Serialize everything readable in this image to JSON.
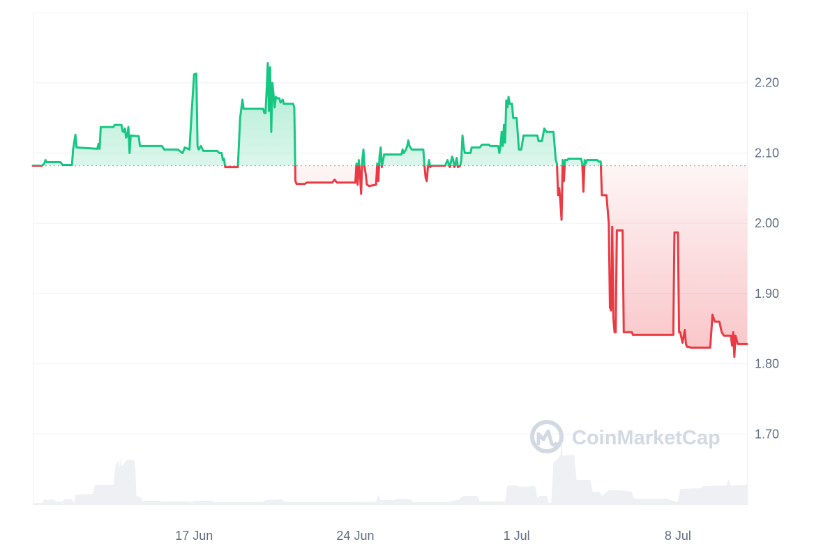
{
  "chart_data": {
    "type": "line",
    "title": "",
    "xlabel": "",
    "ylabel": "",
    "x_ticks": [
      "17 Jun",
      "24 Jun",
      "1 Jul",
      "8 Jul"
    ],
    "y_ticks": [
      "2.20",
      "2.10",
      "2.00",
      "1.90",
      "1.80",
      "1.70"
    ],
    "ylim": [
      1.6,
      2.3
    ],
    "x_range_days": [
      0,
      31
    ],
    "baseline": 2.082,
    "grid": true,
    "legend": "none",
    "colors": {
      "up": "#16c784",
      "down": "#ea3943",
      "grid": "#eef0f4",
      "baseline": "#a4acbb",
      "volume": "#eef0f3"
    },
    "series": [
      {
        "points": [
          [
            0.0,
            2.082
          ],
          [
            0.4,
            2.082
          ],
          [
            0.5,
            2.085
          ],
          [
            0.55,
            2.09
          ],
          [
            0.6,
            2.087
          ],
          [
            1.2,
            2.087
          ],
          [
            1.3,
            2.083
          ],
          [
            1.7,
            2.083
          ],
          [
            1.75,
            2.105
          ],
          [
            1.85,
            2.126
          ],
          [
            1.9,
            2.108
          ],
          [
            2.8,
            2.106
          ],
          [
            2.85,
            2.113
          ],
          [
            2.9,
            2.106
          ],
          [
            2.95,
            2.137
          ],
          [
            3.5,
            2.137
          ],
          [
            3.55,
            2.14
          ],
          [
            3.85,
            2.14
          ],
          [
            3.9,
            2.131
          ],
          [
            3.95,
            2.13
          ],
          [
            4.0,
            2.135
          ],
          [
            4.05,
            2.122
          ],
          [
            4.1,
            2.125
          ],
          [
            4.15,
            2.137
          ],
          [
            4.2,
            2.1
          ],
          [
            4.25,
            2.125
          ],
          [
            4.6,
            2.124
          ],
          [
            4.65,
            2.11
          ],
          [
            5.6,
            2.11
          ],
          [
            5.65,
            2.108
          ],
          [
            5.7,
            2.105
          ],
          [
            6.3,
            2.105
          ],
          [
            6.5,
            2.1
          ],
          [
            6.6,
            2.108
          ],
          [
            6.8,
            2.105
          ],
          [
            6.9,
            2.16
          ],
          [
            7.0,
            2.212
          ],
          [
            7.1,
            2.213
          ],
          [
            7.15,
            2.11
          ],
          [
            7.2,
            2.105
          ],
          [
            7.3,
            2.11
          ],
          [
            7.4,
            2.103
          ],
          [
            8.0,
            2.103
          ],
          [
            8.1,
            2.1
          ],
          [
            8.2,
            2.1
          ],
          [
            8.25,
            2.09
          ],
          [
            8.3,
            2.092
          ],
          [
            8.35,
            2.08
          ],
          [
            8.9,
            2.08
          ],
          [
            9.0,
            2.15
          ],
          [
            9.1,
            2.176
          ],
          [
            9.15,
            2.163
          ],
          [
            10.0,
            2.163
          ],
          [
            10.05,
            2.157
          ],
          [
            10.1,
            2.157
          ],
          [
            10.15,
            2.19
          ],
          [
            10.2,
            2.228
          ],
          [
            10.25,
            2.16
          ],
          [
            10.3,
            2.222
          ],
          [
            10.35,
            2.13
          ],
          [
            10.4,
            2.2
          ],
          [
            10.5,
            2.165
          ],
          [
            10.55,
            2.18
          ],
          [
            10.6,
            2.178
          ],
          [
            10.7,
            2.178
          ],
          [
            10.75,
            2.172
          ],
          [
            10.85,
            2.176
          ],
          [
            10.9,
            2.17
          ],
          [
            11.3,
            2.17
          ],
          [
            11.35,
            2.165
          ],
          [
            11.4,
            2.06
          ],
          [
            11.45,
            2.056
          ],
          [
            11.8,
            2.056
          ],
          [
            11.9,
            2.058
          ],
          [
            13.0,
            2.058
          ],
          [
            13.1,
            2.062
          ],
          [
            13.2,
            2.058
          ],
          [
            14.0,
            2.058
          ],
          [
            14.05,
            2.085
          ],
          [
            14.1,
            2.055
          ],
          [
            14.15,
            2.09
          ],
          [
            14.2,
            2.07
          ],
          [
            14.25,
            2.042
          ],
          [
            14.3,
            2.09
          ],
          [
            14.35,
            2.105
          ],
          [
            14.4,
            2.08
          ],
          [
            14.45,
            2.07
          ],
          [
            14.5,
            2.055
          ],
          [
            14.6,
            2.053
          ],
          [
            14.9,
            2.055
          ],
          [
            14.95,
            2.085
          ],
          [
            15.0,
            2.06
          ],
          [
            15.05,
            2.095
          ],
          [
            15.1,
            2.108
          ],
          [
            15.15,
            2.08
          ],
          [
            15.25,
            2.098
          ],
          [
            16.0,
            2.098
          ],
          [
            16.05,
            2.105
          ],
          [
            16.1,
            2.1
          ],
          [
            16.2,
            2.105
          ],
          [
            16.25,
            2.11
          ],
          [
            16.3,
            2.118
          ],
          [
            16.35,
            2.11
          ],
          [
            16.45,
            2.105
          ],
          [
            16.95,
            2.105
          ],
          [
            17.0,
            2.082
          ],
          [
            17.05,
            2.065
          ],
          [
            17.1,
            2.06
          ],
          [
            17.15,
            2.08
          ],
          [
            17.2,
            2.09
          ],
          [
            17.25,
            2.08
          ],
          [
            17.3,
            2.082
          ],
          [
            17.9,
            2.082
          ],
          [
            18.0,
            2.09
          ],
          [
            18.1,
            2.08
          ],
          [
            18.2,
            2.095
          ],
          [
            18.25,
            2.09
          ],
          [
            18.3,
            2.08
          ],
          [
            18.35,
            2.085
          ],
          [
            18.4,
            2.093
          ],
          [
            18.45,
            2.08
          ],
          [
            18.55,
            2.082
          ],
          [
            18.6,
            2.09
          ],
          [
            18.65,
            2.125
          ],
          [
            18.7,
            2.11
          ],
          [
            18.75,
            2.1
          ],
          [
            19.0,
            2.1
          ],
          [
            19.05,
            2.108
          ],
          [
            19.4,
            2.108
          ],
          [
            19.5,
            2.112
          ],
          [
            19.8,
            2.112
          ],
          [
            19.85,
            2.11
          ],
          [
            20.2,
            2.11
          ],
          [
            20.25,
            2.1
          ],
          [
            20.3,
            2.11
          ],
          [
            20.35,
            2.13
          ],
          [
            20.4,
            2.11
          ],
          [
            20.45,
            2.14
          ],
          [
            20.5,
            2.115
          ],
          [
            20.55,
            2.175
          ],
          [
            20.6,
            2.165
          ],
          [
            20.65,
            2.18
          ],
          [
            20.7,
            2.17
          ],
          [
            20.8,
            2.17
          ],
          [
            20.85,
            2.15
          ],
          [
            20.9,
            2.15
          ],
          [
            21.0,
            2.15
          ],
          [
            21.1,
            2.105
          ],
          [
            21.2,
            2.105
          ],
          [
            21.3,
            2.125
          ],
          [
            21.9,
            2.125
          ],
          [
            21.95,
            2.117
          ],
          [
            22.1,
            2.117
          ],
          [
            22.2,
            2.135
          ],
          [
            22.3,
            2.13
          ],
          [
            22.6,
            2.13
          ],
          [
            22.7,
            2.09
          ],
          [
            22.75,
            2.085
          ],
          [
            22.8,
            2.04
          ],
          [
            22.85,
            2.05
          ],
          [
            22.9,
            2.03
          ],
          [
            22.95,
            2.005
          ],
          [
            23.0,
            2.09
          ],
          [
            23.05,
            2.06
          ],
          [
            23.1,
            2.09
          ],
          [
            23.2,
            2.09
          ],
          [
            23.25,
            2.092
          ],
          [
            23.8,
            2.092
          ],
          [
            23.85,
            2.085
          ],
          [
            23.9,
            2.045
          ],
          [
            23.95,
            2.09
          ],
          [
            24.0,
            2.085
          ],
          [
            24.05,
            2.09
          ],
          [
            24.5,
            2.09
          ],
          [
            24.55,
            2.088
          ],
          [
            24.65,
            2.088
          ],
          [
            24.7,
            2.04
          ],
          [
            24.8,
            2.04
          ],
          [
            24.9,
            2.04
          ],
          [
            25.0,
            2.0
          ],
          [
            25.05,
            1.88
          ],
          [
            25.1,
            1.876
          ],
          [
            25.15,
            1.995
          ],
          [
            25.2,
            1.865
          ],
          [
            25.25,
            1.845
          ],
          [
            25.3,
            1.845
          ],
          [
            25.35,
            1.99
          ],
          [
            25.6,
            1.99
          ],
          [
            25.65,
            1.845
          ],
          [
            26.0,
            1.845
          ],
          [
            26.05,
            1.841
          ],
          [
            27.8,
            1.841
          ],
          [
            27.85,
            1.987
          ],
          [
            28.0,
            1.987
          ],
          [
            28.05,
            1.845
          ],
          [
            28.1,
            1.845
          ],
          [
            28.2,
            1.83
          ],
          [
            28.3,
            1.848
          ],
          [
            28.35,
            1.828
          ],
          [
            28.4,
            1.824
          ],
          [
            28.5,
            1.824
          ],
          [
            28.55,
            1.823
          ],
          [
            29.4,
            1.823
          ],
          [
            29.45,
            1.845
          ],
          [
            29.5,
            1.87
          ],
          [
            29.6,
            1.86
          ],
          [
            29.8,
            1.86
          ],
          [
            29.9,
            1.845
          ],
          [
            30.0,
            1.84
          ],
          [
            30.3,
            1.84
          ],
          [
            30.35,
            1.826
          ],
          [
            30.4,
            1.845
          ],
          [
            30.45,
            1.81
          ],
          [
            30.5,
            1.84
          ],
          [
            30.6,
            1.828
          ],
          [
            31.0,
            1.828
          ]
        ]
      }
    ],
    "volume": [
      [
        0.0,
        2
      ],
      [
        0.4,
        2
      ],
      [
        0.5,
        7
      ],
      [
        0.6,
        6
      ],
      [
        0.9,
        7
      ],
      [
        1.0,
        4
      ],
      [
        1.3,
        4
      ],
      [
        1.4,
        8
      ],
      [
        1.7,
        7
      ],
      [
        1.8,
        2
      ],
      [
        1.85,
        14
      ],
      [
        2.6,
        15
      ],
      [
        2.7,
        28
      ],
      [
        3.5,
        28
      ],
      [
        3.6,
        56
      ],
      [
        3.7,
        62
      ],
      [
        3.75,
        50
      ],
      [
        3.8,
        67
      ],
      [
        3.85,
        54
      ],
      [
        4.1,
        64
      ],
      [
        4.4,
        64
      ],
      [
        4.45,
        52
      ],
      [
        4.5,
        12
      ],
      [
        4.7,
        10
      ],
      [
        4.75,
        5
      ],
      [
        5.5,
        5
      ],
      [
        5.6,
        4
      ],
      [
        6.8,
        4
      ],
      [
        6.9,
        3
      ],
      [
        7.0,
        5
      ],
      [
        7.8,
        5
      ],
      [
        7.9,
        3
      ],
      [
        10.0,
        3
      ],
      [
        10.1,
        6
      ],
      [
        10.8,
        7
      ],
      [
        10.9,
        4
      ],
      [
        11.0,
        4
      ],
      [
        11.05,
        3
      ],
      [
        13.0,
        3
      ],
      [
        14.0,
        3
      ],
      [
        14.9,
        4
      ],
      [
        15.0,
        14
      ],
      [
        15.1,
        6
      ],
      [
        15.7,
        6
      ],
      [
        15.8,
        8
      ],
      [
        16.4,
        7
      ],
      [
        16.5,
        3
      ],
      [
        17.0,
        3
      ],
      [
        18.0,
        3
      ],
      [
        18.1,
        4
      ],
      [
        18.5,
        7
      ],
      [
        18.7,
        12
      ],
      [
        19.3,
        12
      ],
      [
        19.4,
        4
      ],
      [
        20.5,
        4
      ],
      [
        20.6,
        27
      ],
      [
        21.0,
        27
      ],
      [
        21.1,
        25
      ],
      [
        21.8,
        26
      ],
      [
        21.9,
        9
      ],
      [
        22.0,
        12
      ],
      [
        22.3,
        12
      ],
      [
        22.4,
        2
      ],
      [
        22.5,
        2
      ],
      [
        22.6,
        60
      ],
      [
        22.8,
        66
      ],
      [
        22.9,
        70
      ],
      [
        22.95,
        95
      ],
      [
        23.0,
        70
      ],
      [
        23.5,
        71
      ],
      [
        23.6,
        35
      ],
      [
        24.2,
        35
      ],
      [
        24.3,
        18
      ],
      [
        24.6,
        18
      ],
      [
        24.7,
        12
      ],
      [
        25.0,
        20
      ],
      [
        25.5,
        20
      ],
      [
        26.0,
        18
      ],
      [
        26.1,
        8
      ],
      [
        27.5,
        8
      ],
      [
        28.0,
        3
      ],
      [
        28.1,
        22
      ],
      [
        28.9,
        23
      ],
      [
        29.0,
        23
      ],
      [
        29.1,
        26
      ],
      [
        30.1,
        27
      ],
      [
        30.2,
        36
      ],
      [
        30.3,
        27
      ],
      [
        31.0,
        28
      ]
    ]
  },
  "watermark": {
    "text": "CoinMarketCap",
    "icon": "coinmarketcap-logo-icon"
  }
}
